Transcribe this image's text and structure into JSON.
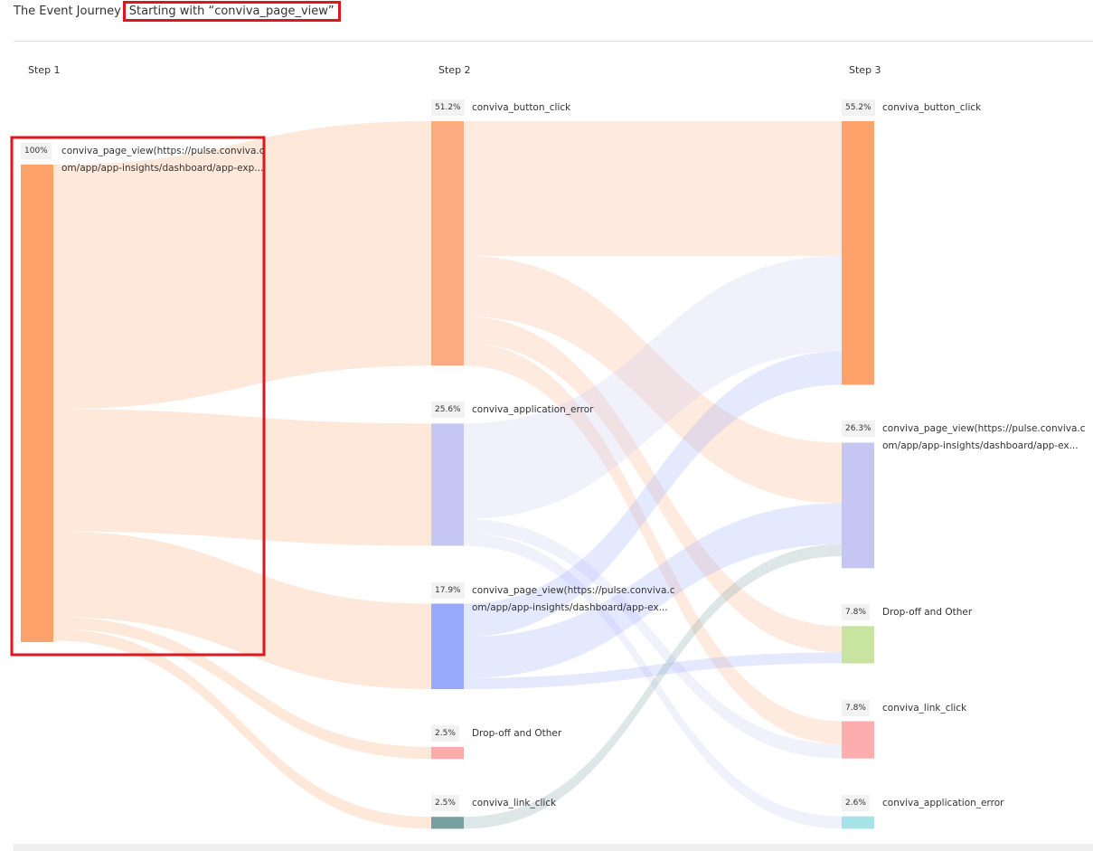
{
  "chart_data": {
    "type": "sankey",
    "title": "The Event Journey",
    "subtitle": "Starting with “conviva_page_view”",
    "steps": [
      {
        "label": "Step 1",
        "nodes": [
          {
            "label": "conviva_page_view(https://pulse.conviva.com/app/app-insights/dashboard/app-exp...",
            "value": 100,
            "value_label": "100%",
            "color": "#fda26b",
            "flows": [
              51.2,
              25.6,
              17.9,
              2.5,
              2.5
            ]
          }
        ]
      },
      {
        "label": "Step 2",
        "nodes": [
          {
            "label": "conviva_button_click",
            "value": 51.2,
            "value_label": "51.2%",
            "color": "#fdab80",
            "flows": [
              28.2,
              12.7,
              5.5,
              4.8,
              null
            ]
          },
          {
            "label": "conviva_application_error",
            "value": 25.6,
            "value_label": "25.6%",
            "color": "#c6c6f5",
            "flows": [
              20.0,
              null,
              null,
              3.0,
              2.6
            ]
          },
          {
            "label": "conviva_page_view(https://pulse.conviva.com/app/app-insights/dashboard/app-ex...",
            "value": 17.9,
            "value_label": "17.9%",
            "color": "#98a8fb",
            "flows": [
              7.0,
              8.6,
              2.3,
              null,
              null
            ]
          },
          {
            "label": "Drop-off and Other",
            "value": 2.5,
            "value_label": "2.5%",
            "color": "#fcaaaa"
          },
          {
            "label": "conviva_link_click",
            "value": 2.5,
            "value_label": "2.5%",
            "color": "#789fa0",
            "flows": [
              null,
              2.5,
              null,
              null,
              null
            ]
          }
        ]
      },
      {
        "label": "Step 3",
        "nodes": [
          {
            "label": "conviva_button_click",
            "value": 55.2,
            "value_label": "55.2%",
            "color": "#fda26b"
          },
          {
            "label": "conviva_page_view(https://pulse.conviva.com/app/app-insights/dashboard/app-ex...",
            "value": 26.3,
            "value_label": "26.3%",
            "color": "#c6c6f5"
          },
          {
            "label": "Drop-off and Other",
            "value": 7.8,
            "value_label": "7.8%",
            "color": "#c8e4a0"
          },
          {
            "label": "conviva_link_click",
            "value": 7.8,
            "value_label": "7.8%",
            "color": "#fdadad"
          },
          {
            "label": "conviva_application_error",
            "value": 2.6,
            "value_label": "2.6%",
            "color": "#a6e3e6"
          }
        ]
      }
    ]
  }
}
